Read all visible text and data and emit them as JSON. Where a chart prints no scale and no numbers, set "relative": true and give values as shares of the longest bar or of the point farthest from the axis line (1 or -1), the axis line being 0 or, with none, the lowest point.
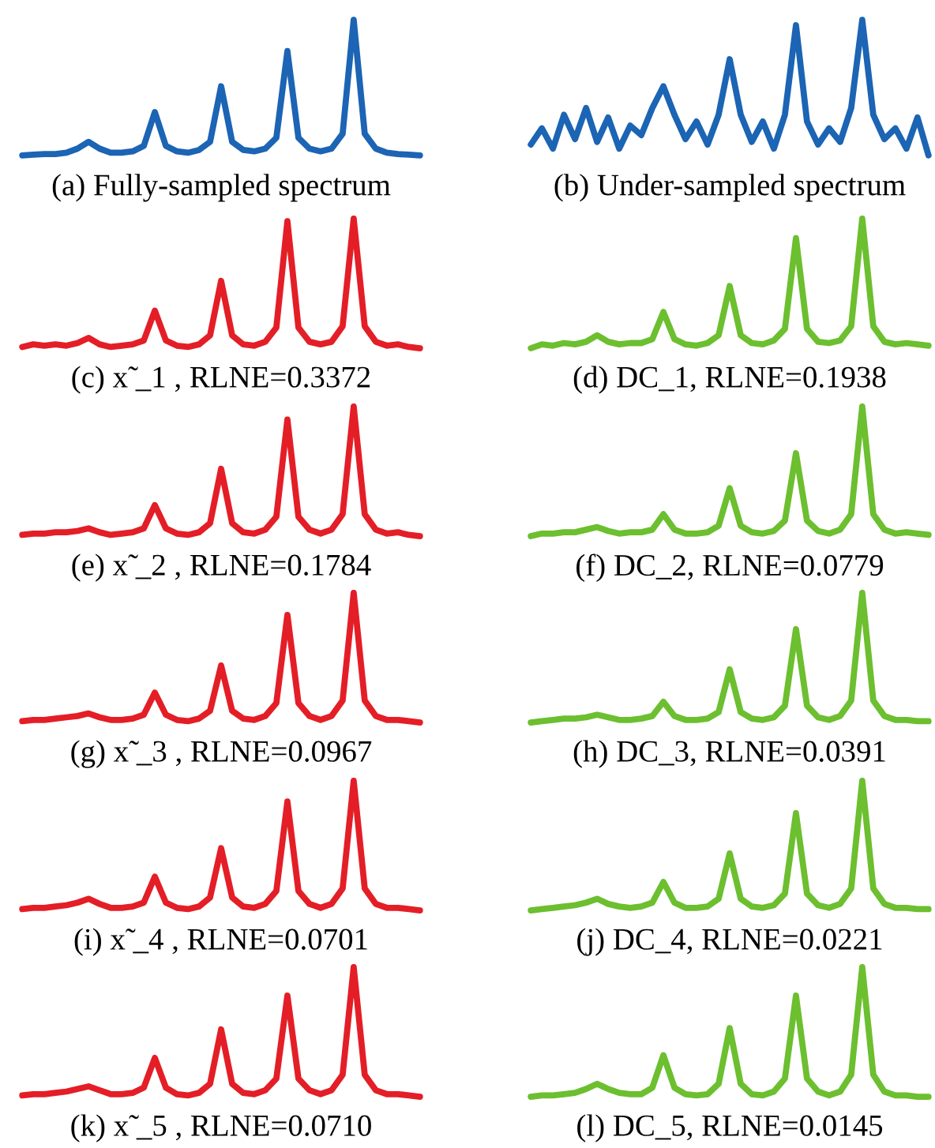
{
  "chart_data": [
    {
      "type": "line",
      "relative": true,
      "title": "(a) Fully-sampled spectrum",
      "categories": [
        null,
        null,
        null,
        null,
        null,
        null,
        null,
        null,
        null,
        null,
        null,
        null,
        null,
        null,
        null,
        null,
        null,
        null,
        null,
        null,
        null,
        null,
        null,
        null,
        null,
        null,
        null,
        null,
        null,
        null,
        null,
        null,
        null,
        null,
        null,
        null,
        null
      ],
      "series": [
        {
          "color": "#1c64b4",
          "values": [
            0,
            0.005,
            0.01,
            0.01,
            0.02,
            0.05,
            0.1,
            0.05,
            0.02,
            0.02,
            0.03,
            0.07,
            0.32,
            0.07,
            0.03,
            0.02,
            0.04,
            0.1,
            0.51,
            0.1,
            0.04,
            0.03,
            0.05,
            0.13,
            0.77,
            0.13,
            0.05,
            0.03,
            0.05,
            0.16,
            1.0,
            0.16,
            0.05,
            0.02,
            0.01,
            0.005,
            0
          ]
        }
      ]
    },
    {
      "type": "line",
      "relative": true,
      "title": "(b) Under-sampled spectrum",
      "categories": [
        null,
        null,
        null,
        null,
        null,
        null,
        null,
        null,
        null,
        null,
        null,
        null,
        null,
        null,
        null,
        null,
        null,
        null,
        null,
        null,
        null,
        null,
        null,
        null,
        null,
        null,
        null,
        null,
        null,
        null,
        null,
        null,
        null,
        null,
        null,
        null,
        null
      ],
      "series": [
        {
          "color": "#1c64b4",
          "values": [
            0.08,
            0.2,
            0.05,
            0.3,
            0.12,
            0.35,
            0.1,
            0.28,
            0.05,
            0.22,
            0.15,
            0.35,
            0.51,
            0.3,
            0.12,
            0.25,
            0.08,
            0.3,
            0.71,
            0.3,
            0.1,
            0.25,
            0.05,
            0.3,
            0.96,
            0.25,
            0.08,
            0.2,
            0.1,
            0.35,
            1.0,
            0.3,
            0.12,
            0.2,
            0.05,
            0.28,
            0
          ]
        }
      ]
    },
    {
      "type": "line",
      "relative": true,
      "title": "(c) x̃ _1 , RLNE=0.3372",
      "categories": [
        null,
        null,
        null,
        null,
        null,
        null,
        null,
        null,
        null,
        null,
        null,
        null,
        null,
        null,
        null,
        null,
        null,
        null,
        null,
        null,
        null,
        null,
        null,
        null,
        null,
        null,
        null,
        null,
        null,
        null,
        null,
        null,
        null,
        null,
        null,
        null,
        null
      ],
      "series": [
        {
          "color": "#e41e26",
          "values": [
            0.01,
            0.03,
            0.02,
            0.03,
            0.02,
            0.04,
            0.08,
            0.03,
            0.01,
            0.02,
            0.03,
            0.06,
            0.29,
            0.06,
            0.02,
            0.01,
            0.03,
            0.1,
            0.52,
            0.1,
            0.03,
            0.02,
            0.05,
            0.16,
            0.98,
            0.16,
            0.05,
            0.03,
            0.05,
            0.17,
            1.0,
            0.17,
            0.05,
            0.02,
            0.03,
            0.01,
            0
          ]
        }
      ]
    },
    {
      "type": "line",
      "relative": true,
      "title": "(d) DC_1, RLNE=0.1938",
      "categories": [
        null,
        null,
        null,
        null,
        null,
        null,
        null,
        null,
        null,
        null,
        null,
        null,
        null,
        null,
        null,
        null,
        null,
        null,
        null,
        null,
        null,
        null,
        null,
        null,
        null,
        null,
        null,
        null,
        null,
        null,
        null,
        null,
        null,
        null,
        null,
        null,
        null
      ],
      "series": [
        {
          "color": "#6cbf2f",
          "values": [
            0,
            0.03,
            0.02,
            0.04,
            0.03,
            0.05,
            0.1,
            0.05,
            0.03,
            0.04,
            0.04,
            0.07,
            0.28,
            0.07,
            0.03,
            0.02,
            0.04,
            0.1,
            0.48,
            0.1,
            0.04,
            0.03,
            0.06,
            0.15,
            0.85,
            0.15,
            0.05,
            0.04,
            0.06,
            0.17,
            1.0,
            0.17,
            0.05,
            0.03,
            0.04,
            0.03,
            0.02
          ]
        }
      ]
    },
    {
      "type": "line",
      "relative": true,
      "title": "(e) x̃ _2 , RLNE=0.1784",
      "categories": [
        null,
        null,
        null,
        null,
        null,
        null,
        null,
        null,
        null,
        null,
        null,
        null,
        null,
        null,
        null,
        null,
        null,
        null,
        null,
        null,
        null,
        null,
        null,
        null,
        null,
        null,
        null,
        null,
        null,
        null,
        null,
        null,
        null,
        null,
        null,
        null,
        null
      ],
      "series": [
        {
          "color": "#e41e26",
          "values": [
            0.01,
            0.02,
            0.02,
            0.03,
            0.03,
            0.04,
            0.06,
            0.03,
            0.01,
            0.02,
            0.03,
            0.06,
            0.24,
            0.06,
            0.02,
            0.01,
            0.03,
            0.1,
            0.52,
            0.1,
            0.03,
            0.02,
            0.05,
            0.15,
            0.9,
            0.15,
            0.05,
            0.02,
            0.05,
            0.17,
            1.0,
            0.17,
            0.05,
            0.02,
            0.03,
            0.01,
            0
          ]
        }
      ]
    },
    {
      "type": "line",
      "relative": true,
      "title": "(f) DC_2, RLNE=0.0779",
      "categories": [
        null,
        null,
        null,
        null,
        null,
        null,
        null,
        null,
        null,
        null,
        null,
        null,
        null,
        null,
        null,
        null,
        null,
        null,
        null,
        null,
        null,
        null,
        null,
        null,
        null,
        null,
        null,
        null,
        null,
        null,
        null,
        null,
        null,
        null,
        null,
        null,
        null
      ],
      "series": [
        {
          "color": "#6cbf2f",
          "values": [
            0,
            0.02,
            0.02,
            0.03,
            0.03,
            0.05,
            0.07,
            0.04,
            0.02,
            0.03,
            0.03,
            0.05,
            0.17,
            0.05,
            0.02,
            0.02,
            0.03,
            0.08,
            0.37,
            0.08,
            0.03,
            0.02,
            0.04,
            0.12,
            0.64,
            0.12,
            0.04,
            0.02,
            0.05,
            0.17,
            1.0,
            0.17,
            0.05,
            0.02,
            0.03,
            0.02,
            0.01
          ]
        }
      ]
    },
    {
      "type": "line",
      "relative": true,
      "title": "(g) x̃ _3 , RLNE=0.0967",
      "categories": [
        null,
        null,
        null,
        null,
        null,
        null,
        null,
        null,
        null,
        null,
        null,
        null,
        null,
        null,
        null,
        null,
        null,
        null,
        null,
        null,
        null,
        null,
        null,
        null,
        null,
        null,
        null,
        null,
        null,
        null,
        null,
        null,
        null,
        null,
        null,
        null,
        null
      ],
      "series": [
        {
          "color": "#e41e26",
          "values": [
            0.01,
            0.02,
            0.02,
            0.03,
            0.04,
            0.05,
            0.07,
            0.04,
            0.02,
            0.02,
            0.03,
            0.06,
            0.23,
            0.06,
            0.02,
            0.01,
            0.03,
            0.09,
            0.44,
            0.09,
            0.03,
            0.02,
            0.05,
            0.15,
            0.83,
            0.15,
            0.05,
            0.02,
            0.05,
            0.17,
            1.0,
            0.17,
            0.05,
            0.02,
            0.02,
            0.01,
            0
          ]
        }
      ]
    },
    {
      "type": "line",
      "relative": true,
      "title": "(h) DC_3, RLNE=0.0391",
      "categories": [
        null,
        null,
        null,
        null,
        null,
        null,
        null,
        null,
        null,
        null,
        null,
        null,
        null,
        null,
        null,
        null,
        null,
        null,
        null,
        null,
        null,
        null,
        null,
        null,
        null,
        null,
        null,
        null,
        null,
        null,
        null,
        null,
        null,
        null,
        null,
        null,
        null
      ],
      "series": [
        {
          "color": "#6cbf2f",
          "values": [
            0,
            0.01,
            0.02,
            0.03,
            0.03,
            0.04,
            0.06,
            0.04,
            0.02,
            0.02,
            0.03,
            0.05,
            0.16,
            0.05,
            0.02,
            0.02,
            0.03,
            0.08,
            0.41,
            0.08,
            0.03,
            0.02,
            0.04,
            0.13,
            0.72,
            0.13,
            0.04,
            0.02,
            0.05,
            0.17,
            1.0,
            0.17,
            0.05,
            0.02,
            0.02,
            0.01,
            0.01
          ]
        }
      ]
    },
    {
      "type": "line",
      "relative": true,
      "title": "(i) x̃ _4 , RLNE=0.0701",
      "categories": [
        null,
        null,
        null,
        null,
        null,
        null,
        null,
        null,
        null,
        null,
        null,
        null,
        null,
        null,
        null,
        null,
        null,
        null,
        null,
        null,
        null,
        null,
        null,
        null,
        null,
        null,
        null,
        null,
        null,
        null,
        null,
        null,
        null,
        null,
        null,
        null,
        null
      ],
      "series": [
        {
          "color": "#e41e26",
          "values": [
            0.01,
            0.02,
            0.02,
            0.03,
            0.04,
            0.06,
            0.09,
            0.05,
            0.02,
            0.02,
            0.03,
            0.06,
            0.26,
            0.06,
            0.02,
            0.01,
            0.03,
            0.1,
            0.48,
            0.1,
            0.03,
            0.02,
            0.05,
            0.15,
            0.84,
            0.15,
            0.05,
            0.02,
            0.05,
            0.17,
            1.0,
            0.17,
            0.05,
            0.02,
            0.02,
            0.01,
            0
          ]
        }
      ]
    },
    {
      "type": "line",
      "relative": true,
      "title": "(j) DC_4, RLNE=0.0221",
      "categories": [
        null,
        null,
        null,
        null,
        null,
        null,
        null,
        null,
        null,
        null,
        null,
        null,
        null,
        null,
        null,
        null,
        null,
        null,
        null,
        null,
        null,
        null,
        null,
        null,
        null,
        null,
        null,
        null,
        null,
        null,
        null,
        null,
        null,
        null,
        null,
        null,
        null
      ],
      "series": [
        {
          "color": "#6cbf2f",
          "values": [
            0,
            0.01,
            0.02,
            0.03,
            0.04,
            0.06,
            0.09,
            0.05,
            0.03,
            0.02,
            0.03,
            0.06,
            0.22,
            0.06,
            0.02,
            0.02,
            0.03,
            0.09,
            0.44,
            0.09,
            0.03,
            0.02,
            0.04,
            0.13,
            0.75,
            0.13,
            0.04,
            0.02,
            0.05,
            0.17,
            1.0,
            0.17,
            0.05,
            0.02,
            0.02,
            0.01,
            0.01
          ]
        }
      ]
    },
    {
      "type": "line",
      "relative": true,
      "title": "(k) x̃ _5 , RLNE=0.0710",
      "categories": [
        null,
        null,
        null,
        null,
        null,
        null,
        null,
        null,
        null,
        null,
        null,
        null,
        null,
        null,
        null,
        null,
        null,
        null,
        null,
        null,
        null,
        null,
        null,
        null,
        null,
        null,
        null,
        null,
        null,
        null,
        null,
        null,
        null,
        null,
        null,
        null,
        null
      ],
      "series": [
        {
          "color": "#e41e26",
          "values": [
            0.01,
            0.02,
            0.02,
            0.03,
            0.04,
            0.06,
            0.08,
            0.05,
            0.02,
            0.02,
            0.03,
            0.07,
            0.3,
            0.07,
            0.02,
            0.01,
            0.03,
            0.1,
            0.52,
            0.1,
            0.03,
            0.02,
            0.05,
            0.14,
            0.78,
            0.14,
            0.05,
            0.02,
            0.05,
            0.17,
            1.0,
            0.17,
            0.05,
            0.02,
            0.02,
            0.01,
            0
          ]
        }
      ]
    },
    {
      "type": "line",
      "relative": true,
      "title": "(l) DC_5, RLNE=0.0145",
      "categories": [
        null,
        null,
        null,
        null,
        null,
        null,
        null,
        null,
        null,
        null,
        null,
        null,
        null,
        null,
        null,
        null,
        null,
        null,
        null,
        null,
        null,
        null,
        null,
        null,
        null,
        null,
        null,
        null,
        null,
        null,
        null,
        null,
        null,
        null,
        null,
        null,
        null
      ],
      "series": [
        {
          "color": "#6cbf2f",
          "values": [
            0,
            0.01,
            0.01,
            0.02,
            0.03,
            0.06,
            0.1,
            0.06,
            0.03,
            0.02,
            0.02,
            0.07,
            0.32,
            0.07,
            0.02,
            0.01,
            0.02,
            0.1,
            0.53,
            0.1,
            0.02,
            0.01,
            0.04,
            0.14,
            0.78,
            0.14,
            0.04,
            0.01,
            0.04,
            0.17,
            1.0,
            0.17,
            0.04,
            0.01,
            0.01,
            0,
            0
          ]
        }
      ]
    }
  ]
}
